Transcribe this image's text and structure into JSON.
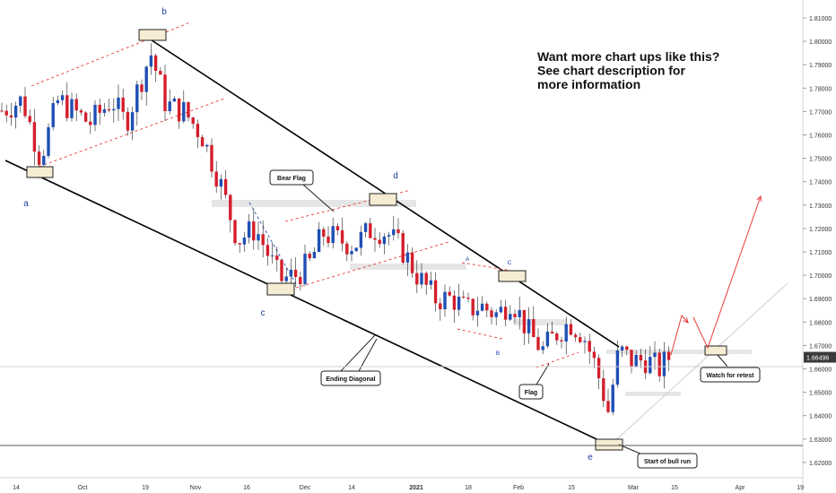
{
  "chart_data": {
    "type": "candlestick",
    "y_axis": {
      "side": "right",
      "ticks": [
        "1.81000",
        "1.80000",
        "1.79000",
        "1.78000",
        "1.77000",
        "1.76000",
        "1.75000",
        "1.74000",
        "1.73000",
        "1.72000",
        "1.71000",
        "1.70000",
        "1.69000",
        "1.68000",
        "1.67000",
        "1.66000",
        "1.65000",
        "1.64000",
        "1.63000",
        "1.62000"
      ],
      "current_price": "1.66496",
      "ylim": [
        1.615,
        1.815
      ]
    },
    "x_axis": {
      "ticks": [
        "14",
        "Oct",
        "19",
        "Nov",
        "16",
        "Dec",
        "14",
        "2021",
        "18",
        "Feb",
        "15",
        "Mar",
        "15",
        "Apr",
        "19"
      ]
    },
    "waves": [
      "a",
      "b",
      "c",
      "d",
      "e"
    ],
    "sub_waves": [
      "A",
      "B",
      "C"
    ],
    "headline": [
      "Want more chart ups like this?",
      "See chart description for",
      "more information"
    ],
    "callouts": [
      "Bear Flag",
      "Ending Diagonal",
      "Flag",
      "Start of bull run",
      "Watch for retest"
    ],
    "colors": {
      "up": "#1f4fb5",
      "down": "#d41f2b",
      "trend": "#000000",
      "channel": "#e83a3a",
      "projection": "#e83a3a",
      "zone": "#f5ecd4"
    }
  }
}
